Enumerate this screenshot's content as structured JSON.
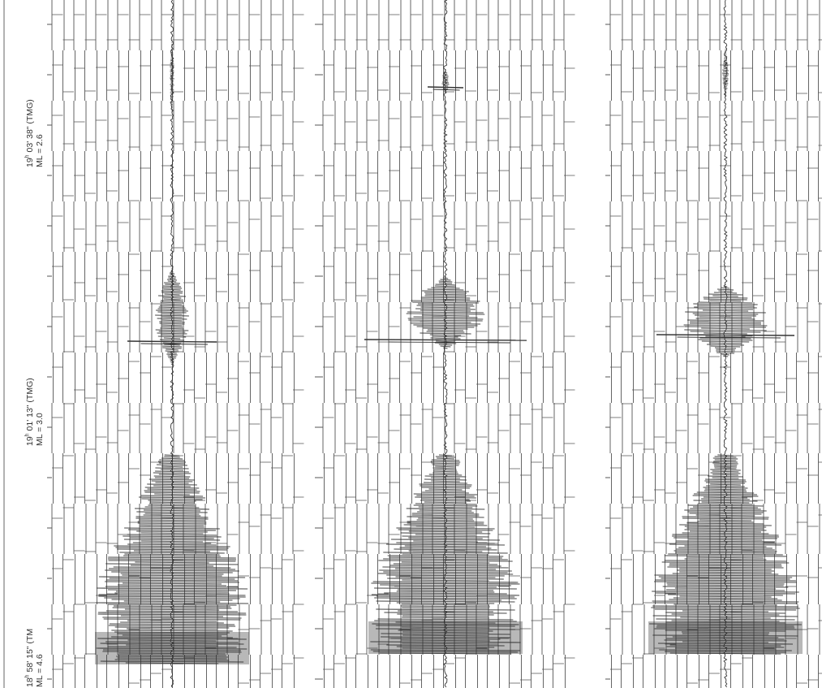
{
  "colors": {
    "paper": "#ffffff",
    "grid": "#555555",
    "trace": "#333333",
    "label": "#333333"
  },
  "labels": [
    {
      "id": "event-1",
      "time_h": "19",
      "time_rest": " 03' 38\" (TMG)",
      "ml": "ML = 2.6"
    },
    {
      "id": "event-2",
      "time_h": "19",
      "time_rest": " 01' 13\" (TMG)",
      "ml": "ML = 3.0"
    },
    {
      "id": "event-3",
      "time_h": "18",
      "time_rest": " 58' 15\" (TM",
      "ml": "ML = 4.6"
    }
  ],
  "hour_mark": "h",
  "seismograms": [
    {
      "id": "record-left",
      "events": [
        {
          "name": "ML 2.6",
          "max_amplitude": 0.1
        },
        {
          "name": "ML 3.0",
          "max_amplitude": 0.5
        },
        {
          "name": "ML 4.6",
          "max_amplitude": 1.0
        }
      ]
    },
    {
      "id": "record-middle",
      "events": [
        {
          "name": "ML 2.6",
          "max_amplitude": 0.2
        },
        {
          "name": "ML 3.0",
          "max_amplitude": 1.0
        },
        {
          "name": "ML 4.6",
          "max_amplitude": 1.0
        }
      ]
    },
    {
      "id": "record-right",
      "events": [
        {
          "name": "ML 2.6",
          "max_amplitude": 0.15
        },
        {
          "name": "ML 3.0",
          "max_amplitude": 1.0
        },
        {
          "name": "ML 4.6",
          "max_amplitude": 1.0
        }
      ]
    }
  ]
}
